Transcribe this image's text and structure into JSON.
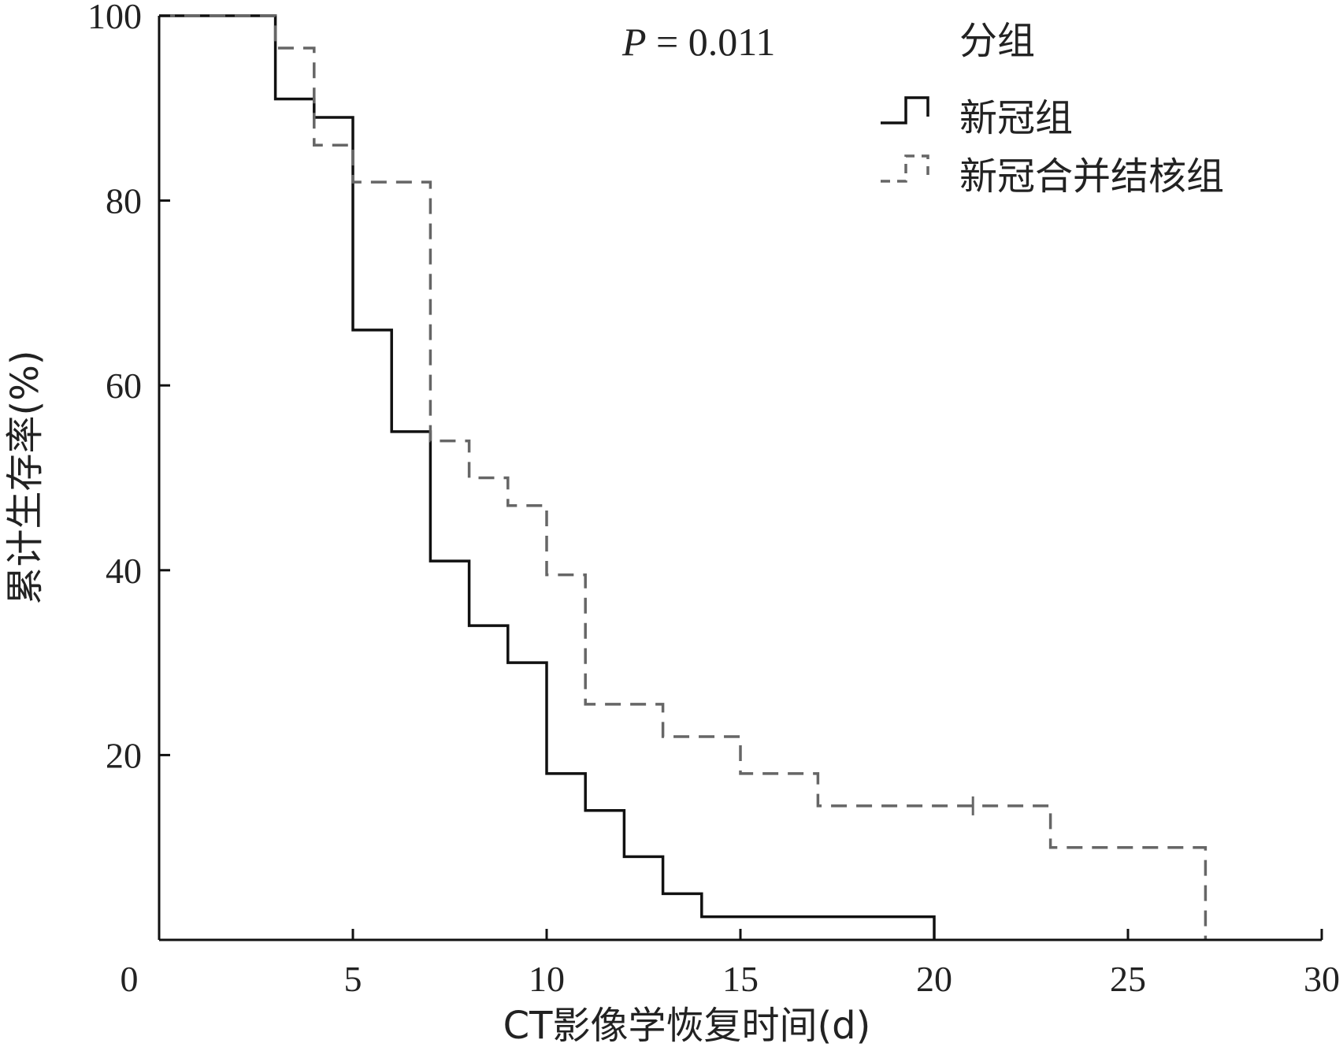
{
  "chart_data": {
    "type": "line",
    "subtype": "kaplan-meier-step",
    "title": "",
    "xlabel": "CT影像学恢复时间(d)",
    "ylabel": "累计生存率(%)",
    "xlim": [
      0,
      30
    ],
    "ylim": [
      0,
      100
    ],
    "xticks": [
      "0",
      "5",
      "10",
      "15",
      "20",
      "25",
      "30"
    ],
    "yticks": [
      "20",
      "40",
      "60",
      "80",
      "100"
    ],
    "grid": false,
    "annotation": {
      "italic": "P",
      "text": " = 0.011"
    },
    "legend": {
      "title": "分组",
      "position": "top-right"
    },
    "series": [
      {
        "name": "新冠组",
        "color": "#111111",
        "style": "solid",
        "x": [
          0,
          3,
          4,
          5,
          6,
          7,
          8,
          9,
          10,
          11,
          12,
          13,
          14,
          20
        ],
        "y": [
          100,
          91,
          89,
          66,
          55,
          41,
          34,
          30,
          18,
          14,
          9,
          5,
          2.5,
          0
        ],
        "censored": []
      },
      {
        "name": "新冠合并结核组",
        "color": "#666666",
        "style": "dashed",
        "x": [
          0,
          3,
          4,
          5,
          7,
          8,
          9,
          10,
          11,
          13,
          15,
          17,
          23,
          27
        ],
        "y": [
          100,
          96.5,
          86,
          82,
          54,
          50,
          47,
          39.5,
          25.5,
          22,
          18,
          14.5,
          10,
          0
        ],
        "censored": [
          [
            21,
            14.5
          ]
        ]
      }
    ]
  }
}
